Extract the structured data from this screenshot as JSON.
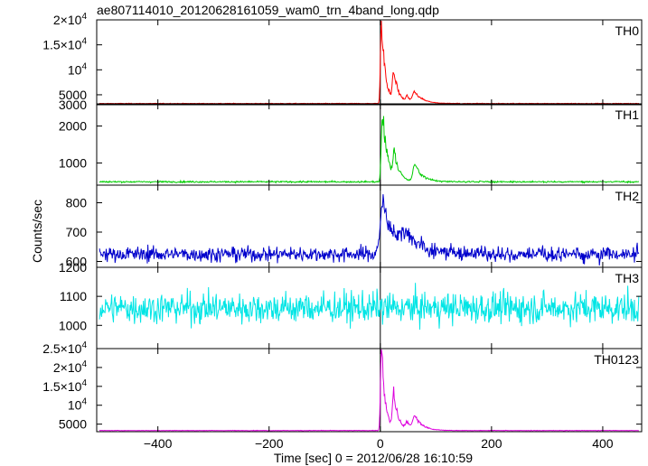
{
  "chart_data": {
    "type": "line",
    "title": "ae807114010_20120628161059_wam0_trn_4band_long.qdp",
    "xlabel": "Time [sec] 0 = 2012/06/28 16:10:59",
    "ylabel": "Counts/sec",
    "xlim": [
      -510,
      470
    ],
    "xticks": [
      {
        "value": -400,
        "label": "−400"
      },
      {
        "value": -200,
        "label": "−200"
      },
      {
        "value": 0,
        "label": "0"
      },
      {
        "value": 200,
        "label": "200"
      },
      {
        "value": 400,
        "label": "400"
      }
    ],
    "grid": false,
    "panels": [
      {
        "label": "TH0",
        "color": "#ff0000",
        "ylim": [
          3000,
          20000
        ],
        "yticks": [
          {
            "value": 20000,
            "mant": "2×10",
            "exp": "4"
          },
          {
            "value": 15000,
            "mant": "1.5×10",
            "exp": "4"
          },
          {
            "value": 10000,
            "mant": "10",
            "exp": "4"
          },
          {
            "value": 5000,
            "mant": "5000",
            "exp": ""
          },
          {
            "value": 3000,
            "mant": "3000",
            "exp": ""
          }
        ],
        "series": {
          "baseline": 3250,
          "noise": 40,
          "features": [
            [
              2,
              4,
              16500
            ],
            [
              24,
              5,
              6000
            ],
            [
              62,
              8,
              2200
            ],
            [
              48,
              5,
              1200
            ]
          ]
        }
      },
      {
        "label": "TH1",
        "color": "#00cc00",
        "ylim": [
          400,
          2600
        ],
        "yticks": [
          {
            "value": 2000,
            "mant": "2000",
            "exp": ""
          },
          {
            "value": 1000,
            "mant": "1000",
            "exp": ""
          }
        ],
        "series": {
          "baseline": 490,
          "noise": 15,
          "features": [
            [
              4,
              5,
              1850
            ],
            [
              25,
              5,
              700
            ],
            [
              62,
              8,
              450
            ]
          ]
        }
      },
      {
        "label": "TH2",
        "color": "#0000cc",
        "ylim": [
          580,
          860
        ],
        "yticks": [
          {
            "value": 800,
            "mant": "800",
            "exp": ""
          },
          {
            "value": 700,
            "mant": "700",
            "exp": ""
          },
          {
            "value": 600,
            "mant": "600",
            "exp": ""
          }
        ],
        "series": {
          "baseline": 625,
          "noise": 18,
          "features": [
            [
              5,
              12,
              170
            ],
            [
              45,
              20,
              50
            ]
          ]
        }
      },
      {
        "label": "TH3",
        "color": "#00e5e5",
        "ylim": [
          920,
          1200
        ],
        "yticks": [
          {
            "value": 1200,
            "mant": "1200",
            "exp": ""
          },
          {
            "value": 1100,
            "mant": "1100",
            "exp": ""
          },
          {
            "value": 1000,
            "mant": "1000",
            "exp": ""
          }
        ],
        "series": {
          "baseline": 1060,
          "noise": 38,
          "features": []
        }
      },
      {
        "label": "TH0123",
        "color": "#dd00dd",
        "ylim": [
          3000,
          25000
        ],
        "yticks": [
          {
            "value": 25000,
            "mant": "2.5×10",
            "exp": "4"
          },
          {
            "value": 20000,
            "mant": "2×10",
            "exp": "4"
          },
          {
            "value": 15000,
            "mant": "1.5×10",
            "exp": "4"
          },
          {
            "value": 10000,
            "mant": "10",
            "exp": "4"
          },
          {
            "value": 5000,
            "mant": "5000",
            "exp": ""
          }
        ],
        "series": {
          "baseline": 3300,
          "noise": 50,
          "features": [
            [
              2,
              4,
              21000
            ],
            [
              24,
              5,
              9000
            ],
            [
              62,
              8,
              3500
            ],
            [
              48,
              5,
              1800
            ]
          ]
        }
      }
    ]
  }
}
